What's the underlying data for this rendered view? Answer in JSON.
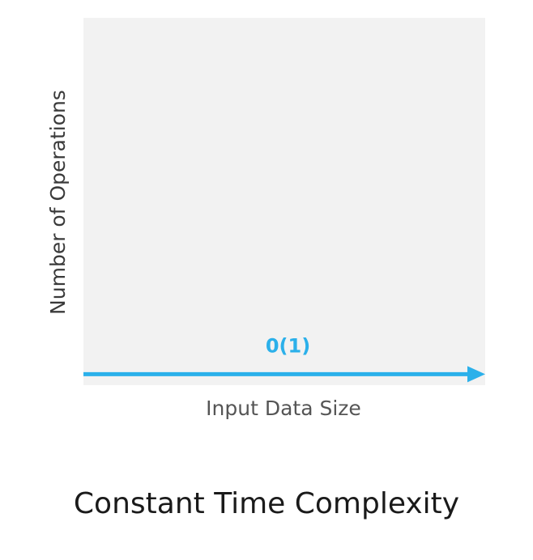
{
  "chart_data": {
    "type": "line",
    "title": "",
    "xlabel": "Input Data Size",
    "ylabel": "Number of Operations",
    "series": [
      {
        "name": "0(1)",
        "x": [
          0,
          1
        ],
        "values": [
          0.03,
          0.03
        ],
        "color": "#2bb0ea"
      }
    ],
    "xlim": [
      0,
      1
    ],
    "ylim": [
      0,
      1
    ],
    "grid": false,
    "legend": "none",
    "background": "#f2f2f2",
    "arrowhead": true
  },
  "caption": "Constant Time Complexity"
}
